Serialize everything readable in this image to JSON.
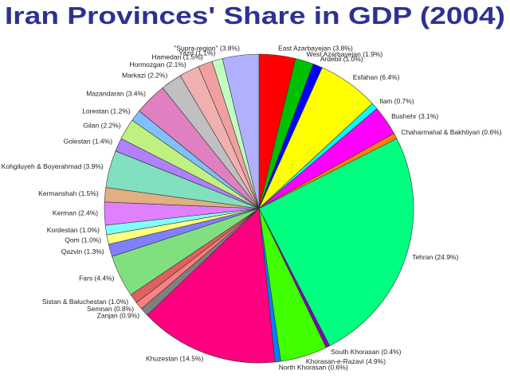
{
  "chart_data": {
    "type": "pie",
    "title": "Iran Provinces' Share in GDP (2004)",
    "categories": [
      "East Azarbayejan",
      "West Azarbayejan",
      "Ardebil",
      "Esfahan",
      "Ilam",
      "Bushehr",
      "Chaharmahal & Bakhtiyari",
      "Tehran",
      "South Khorasan",
      "Khorasan-e-Razavi",
      "North Khorasan",
      "Khuzestan",
      "Zanjan",
      "Semnan",
      "Sistan & Baluchestan",
      "Fars",
      "Qazvin",
      "Qom",
      "Kordestan",
      "Kerman",
      "Kermanshah",
      "Kohgiluyeh & Boyerahmad",
      "Golestan",
      "Gilan",
      "Lorestan",
      "Mazandaran",
      "Markazi",
      "Hormozgan",
      "Hamedan",
      "Yazd",
      "\"Supra-region\""
    ],
    "values": [
      3.8,
      1.9,
      1.0,
      6.4,
      0.7,
      3.1,
      0.6,
      24.9,
      0.4,
      4.9,
      0.6,
      14.5,
      0.9,
      0.8,
      1.0,
      4.4,
      1.3,
      1.0,
      1.0,
      2.4,
      1.5,
      3.9,
      1.4,
      2.2,
      1.2,
      3.4,
      2.2,
      2.1,
      1.5,
      1.1,
      3.8
    ],
    "value_labels": [
      "(3.8%)",
      "(1.9%)",
      "(1.0%)",
      "(6.4%)",
      "(0.7%)",
      "(3.1%)",
      "(0.6%)",
      "(24.9%)",
      "(0.4%)",
      "(4.9%)",
      "(0.6%)",
      "(14.5%)",
      "(0.9%)",
      "(0.8%)",
      "(1.0%)",
      "(4.4%)",
      "(1.3%)",
      "(1.0%)",
      "(1.0%)",
      "(2.4%)",
      "(1.5%)",
      "(3.9%)",
      "(1.4%)",
      "(2.2%)",
      "(1.2%)",
      "(3.4%)",
      "(2.2%)",
      "(2.1%)",
      "(1.5%)",
      "(1.1%)",
      "(3.8%)"
    ],
    "colors": [
      "#ff0000",
      "#00c000",
      "#0000ff",
      "#ffff00",
      "#00ffff",
      "#ff00ff",
      "#ff7f00",
      "#00ff80",
      "#8000c0",
      "#40ff00",
      "#0080ff",
      "#ff0080",
      "#808080",
      "#ff8080",
      "#e06060",
      "#80e080",
      "#8080ff",
      "#ffff80",
      "#80ffff",
      "#e080ff",
      "#e0b080",
      "#80e0c0",
      "#b080ff",
      "#c0f080",
      "#80c0ff",
      "#e080c0",
      "#c0c0c0",
      "#f0b0b0",
      "#f0a0a0",
      "#c0ffc0",
      "#b0b0ff"
    ]
  }
}
